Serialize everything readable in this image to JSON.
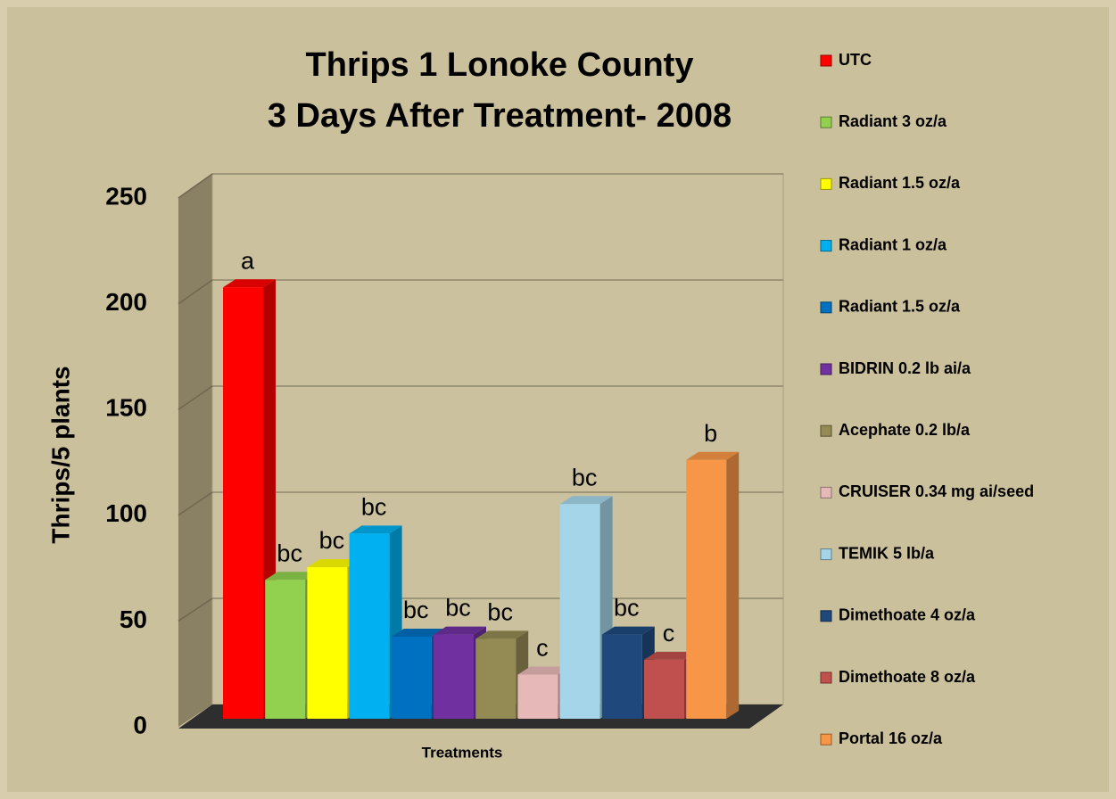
{
  "chart_data": {
    "type": "bar3d",
    "title": [
      "Thrips 1 Lonoke County",
      "3 Days After Treatment- 2008"
    ],
    "ylabel": "Thrips/5 plants",
    "xlabel": "Treatments",
    "ylim": [
      0,
      250
    ],
    "yticks": [
      0,
      50,
      100,
      150,
      200,
      250
    ],
    "grid": true,
    "legend": "right",
    "series": [
      {
        "name": "UTC",
        "color": "#ff0000",
        "values": [
          205
        ],
        "annotation": "a"
      },
      {
        "name": "Radiant 3 oz/a",
        "color": "#92d050",
        "values": [
          66
        ],
        "annotation": "bc"
      },
      {
        "name": "Radiant 1.5 oz/a",
        "color": "#ffff00",
        "values": [
          72
        ],
        "annotation": "bc"
      },
      {
        "name": "Radiant 1 oz/a",
        "color": "#00b0f0",
        "values": [
          88
        ],
        "annotation": "bc"
      },
      {
        "name": "Radiant 1.5 oz/a",
        "color": "#0070c0",
        "values": [
          39
        ],
        "annotation": "bc"
      },
      {
        "name": "BIDRIN 0.2 lb ai/a",
        "color": "#7030a0",
        "values": [
          40
        ],
        "annotation": "bc"
      },
      {
        "name": "Acephate 0.2 lb/a",
        "color": "#948a54",
        "values": [
          38
        ],
        "annotation": "bc"
      },
      {
        "name": "CRUISER 0.34 mg ai/seed",
        "color": "#e6b9b8",
        "values": [
          21
        ],
        "annotation": "c"
      },
      {
        "name": "TEMIK 5 lb/a",
        "color": "#a5d5e8",
        "values": [
          102
        ],
        "annotation": "bc"
      },
      {
        "name": "Dimethoate 4 oz/a",
        "color": "#1f497d",
        "values": [
          40
        ],
        "annotation": "bc"
      },
      {
        "name": "Dimethoate 8 oz/a",
        "color": "#c0504d",
        "values": [
          28
        ],
        "annotation": "c"
      },
      {
        "name": "Portal 16 oz/a",
        "color": "#f79646",
        "values": [
          123
        ],
        "annotation": "b"
      }
    ]
  }
}
